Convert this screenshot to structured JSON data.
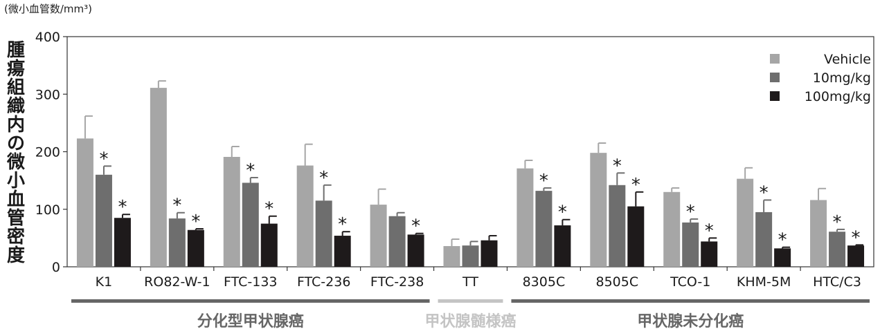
{
  "chart_data": {
    "type": "bar",
    "unit_label": "(微小血管数/mm³)",
    "ylabel": "腫瘍組織内の微小血管密度",
    "ylim": [
      0,
      400
    ],
    "yticks": [
      0,
      100,
      200,
      300,
      400
    ],
    "grid": false,
    "legend_position": "top-right",
    "significance_marker": "*",
    "categories": [
      "K1",
      "RO82-W-1",
      "FTC-133",
      "FTC-236",
      "FTC-238",
      "TT",
      "8305C",
      "8505C",
      "TCO-1",
      "KHM-5M",
      "HTC/C3"
    ],
    "series": [
      {
        "name": "Vehicle",
        "color": "#a6a6a6",
        "values": [
          223,
          311,
          191,
          176,
          108,
          36,
          171,
          198,
          130,
          153,
          116
        ],
        "errors": [
          39,
          12,
          18,
          37,
          27,
          12,
          14,
          17,
          7,
          19,
          20
        ],
        "significant": [
          false,
          false,
          false,
          false,
          false,
          false,
          false,
          false,
          false,
          false,
          false
        ]
      },
      {
        "name": "10mg/kg",
        "color": "#6e6e6e",
        "values": [
          160,
          84,
          146,
          115,
          88,
          37,
          132,
          142,
          77,
          95,
          61
        ],
        "errors": [
          15,
          10,
          9,
          27,
          6,
          7,
          5,
          21,
          6,
          21,
          4
        ],
        "significant": [
          true,
          true,
          true,
          true,
          false,
          false,
          true,
          true,
          true,
          true,
          true
        ]
      },
      {
        "name": "100mg/kg",
        "color": "#1e1a1b",
        "values": [
          85,
          64,
          75,
          54,
          56,
          46,
          72,
          105,
          44,
          32,
          37
        ],
        "errors": [
          6,
          2,
          13,
          7,
          2,
          8,
          10,
          25,
          6,
          2,
          1
        ],
        "significant": [
          true,
          true,
          true,
          true,
          true,
          false,
          true,
          true,
          true,
          true,
          true
        ]
      }
    ],
    "groups": [
      {
        "label": "分化型甲状腺癌",
        "start": 0,
        "end": 4,
        "color": "#666666"
      },
      {
        "label": "甲状腺髄様癌",
        "start": 5,
        "end": 5,
        "color": "#c4c4c4"
      },
      {
        "label": "甲状腺未分化癌",
        "start": 6,
        "end": 10,
        "color": "#666666"
      }
    ]
  }
}
